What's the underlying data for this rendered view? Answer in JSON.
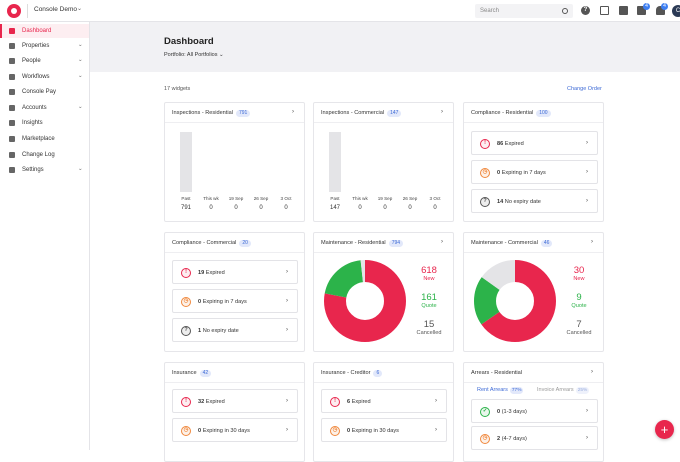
{
  "app": {
    "org_name": "Console Demo",
    "avatar_initial": "C"
  },
  "topbar": {
    "search_placeholder": "Search",
    "help_label": "?",
    "mail_badge": "4",
    "bell_badge": "4"
  },
  "sidebar": {
    "items": [
      {
        "label": "Dashboard",
        "icon": "dashboard-icon",
        "active": true
      },
      {
        "label": "Properties",
        "icon": "home-icon",
        "caret": true
      },
      {
        "label": "People",
        "icon": "people-icon",
        "caret": true
      },
      {
        "label": "Workflows",
        "icon": "flag-icon",
        "caret": true
      },
      {
        "label": "Console Pay",
        "icon": "card-icon"
      },
      {
        "label": "Accounts",
        "icon": "money-icon",
        "caret": true
      },
      {
        "label": "Insights",
        "icon": "insights-icon"
      },
      {
        "label": "Marketplace",
        "icon": "marketplace-icon"
      },
      {
        "label": "Change Log",
        "icon": "changelog-icon"
      },
      {
        "label": "Settings",
        "icon": "gear-icon",
        "caret": true
      }
    ]
  },
  "header": {
    "title": "Dashboard",
    "portfolio": "Portfolio: All Portfolios"
  },
  "toolbar": {
    "widgets_count": "17 widgets",
    "change_order": "Change Order"
  },
  "colors": {
    "accent": "#e8264d",
    "link": "#3d6ad6",
    "green": "#2cb34a",
    "orange": "#f0883d",
    "grey_segment": "#e4e4e7"
  },
  "cards": {
    "insp_res": {
      "title": "Inspections - Residential",
      "count": "791",
      "chart_data": {
        "type": "bar",
        "categories": [
          "Past",
          "This wk",
          "19 Sep",
          "26 Sep",
          "3 Oct"
        ],
        "values": [
          791,
          0,
          0,
          0,
          0
        ]
      }
    },
    "insp_com": {
      "title": "Inspections - Commercial",
      "count": "147",
      "chart_data": {
        "type": "bar",
        "categories": [
          "Past",
          "This wk",
          "19 Sep",
          "26 Sep",
          "3 Oct"
        ],
        "values": [
          147,
          0,
          0,
          0,
          0
        ]
      }
    },
    "comp_res": {
      "title": "Compliance - Residential",
      "count": "100",
      "rows": [
        {
          "num": "86",
          "text": "Expired",
          "icon": "alert-icon",
          "kind": "red"
        },
        {
          "num": "0",
          "text": "Expiring in 7 days",
          "icon": "clock-icon",
          "kind": "orange"
        },
        {
          "num": "14",
          "text": "No expiry date",
          "icon": "question-icon",
          "kind": "grey"
        }
      ]
    },
    "comp_com": {
      "title": "Compliance - Commercial",
      "count": "20",
      "rows": [
        {
          "num": "19",
          "text": "Expired",
          "icon": "alert-icon",
          "kind": "red"
        },
        {
          "num": "0",
          "text": "Expiring in 7 days",
          "icon": "clock-icon",
          "kind": "orange"
        },
        {
          "num": "1",
          "text": "No expiry date",
          "icon": "question-icon",
          "kind": "grey"
        }
      ]
    },
    "maint_res": {
      "title": "Maintenance - Residential",
      "count": "794",
      "chart_data": {
        "type": "pie",
        "labels": [
          "New",
          "Quote",
          "Cancelled"
        ],
        "values": [
          618,
          161,
          15
        ],
        "colors": [
          "#e8264d",
          "#2cb34a",
          "#e4e4e7"
        ]
      },
      "stats": [
        {
          "num": "618",
          "label": "New"
        },
        {
          "num": "161",
          "label": "Quote"
        },
        {
          "num": "15",
          "label": "Cancelled"
        }
      ]
    },
    "maint_com": {
      "title": "Maintenance - Commercial",
      "count": "46",
      "chart_data": {
        "type": "pie",
        "labels": [
          "New",
          "Quote",
          "Cancelled"
        ],
        "values": [
          30,
          9,
          7
        ],
        "colors": [
          "#e8264d",
          "#2cb34a",
          "#e4e4e7"
        ]
      },
      "stats": [
        {
          "num": "30",
          "label": "New"
        },
        {
          "num": "9",
          "label": "Quote"
        },
        {
          "num": "7",
          "label": "Cancelled"
        }
      ]
    },
    "insurance": {
      "title": "Insurance",
      "count": "42",
      "rows": [
        {
          "num": "32",
          "text": "Expired",
          "icon": "alert-icon",
          "kind": "red"
        },
        {
          "num": "0",
          "text": "Expiring in 30 days",
          "icon": "clock-icon",
          "kind": "orange"
        }
      ]
    },
    "ins_cred": {
      "title": "Insurance - Creditor",
      "count": "6",
      "rows": [
        {
          "num": "6",
          "text": "Expired",
          "icon": "alert-icon",
          "kind": "red"
        },
        {
          "num": "0",
          "text": "Expiring in 30 days",
          "icon": "clock-icon",
          "kind": "orange"
        }
      ]
    },
    "arrears": {
      "title": "Arrears - Residential",
      "tabs": [
        {
          "label": "Rent Arrears",
          "pct": "77%",
          "active": true
        },
        {
          "label": "Invoice Arrears",
          "pct": "25%",
          "active": false
        }
      ],
      "rows": [
        {
          "num": "0",
          "text": "(1-3 days)",
          "icon": "check-icon",
          "kind": "green"
        },
        {
          "num": "2",
          "text": "(4-7 days)",
          "icon": "clock-icon",
          "kind": "orange"
        }
      ]
    }
  },
  "fab": {
    "label": "+"
  }
}
